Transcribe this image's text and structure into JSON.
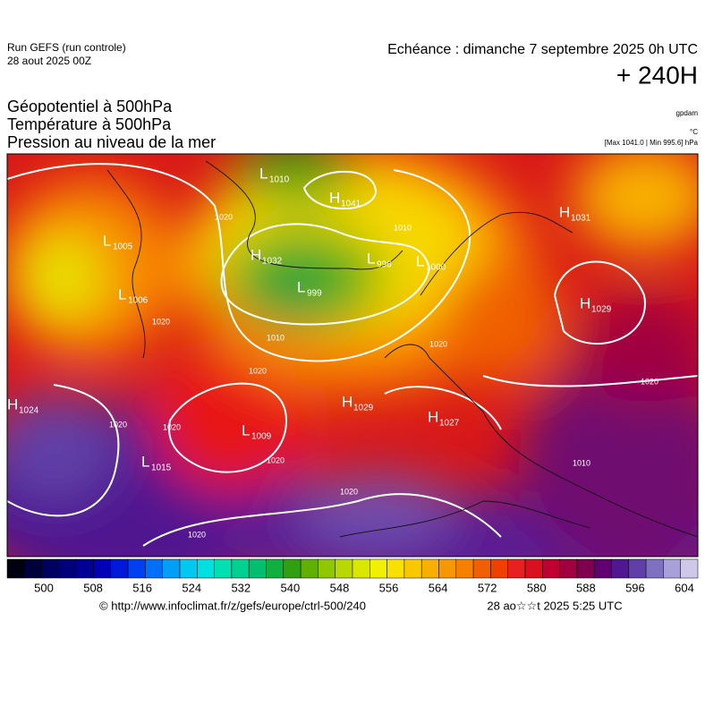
{
  "header": {
    "run": "Run GEFS (run controle)",
    "date": "28 aout 2025 00Z",
    "echeance": "Echéance : dimanche 7 septembre 2025 0h UTC",
    "lead": "+ 240H",
    "fields": [
      "Géopotentiel à 500hPa",
      "Température à 500hPa",
      "Pression au niveau de la mer"
    ],
    "units": [
      "gpdam",
      "°C",
      "[Max 1041.0 | Min 995.6] hPa"
    ]
  },
  "map": {
    "pressure_centers": [
      {
        "kind": "H",
        "value": 1024
      },
      {
        "kind": "L",
        "value": 1015
      },
      {
        "kind": "L",
        "value": 1009
      },
      {
        "kind": "H",
        "value": 1029
      },
      {
        "kind": "H",
        "value": 1027
      },
      {
        "kind": "L",
        "value": 1006
      },
      {
        "kind": "L",
        "value": 1005
      },
      {
        "kind": "L",
        "value": 1010
      },
      {
        "kind": "H",
        "value": 1041
      },
      {
        "kind": "H",
        "value": 1032
      },
      {
        "kind": "L",
        "value": 999
      },
      {
        "kind": "L",
        "value": 996
      },
      {
        "kind": "L",
        "value": 1000
      },
      {
        "kind": "H",
        "value": 1029
      },
      {
        "kind": "H",
        "value": 1031
      }
    ],
    "isobar_labels": [
      1020,
      1020,
      1020,
      1020,
      1020,
      1010,
      1020,
      1010,
      1020,
      1020,
      1020,
      1010,
      1020
    ]
  },
  "colorbar": {
    "ticks": [
      500,
      508,
      516,
      524,
      532,
      540,
      548,
      556,
      564,
      572,
      580,
      588,
      596,
      604
    ],
    "colors": [
      "#000010",
      "#00003a",
      "#000060",
      "#00007a",
      "#000094",
      "#0000b4",
      "#0018d8",
      "#0040f0",
      "#0070f8",
      "#00a0f8",
      "#00c8f0",
      "#00e0e0",
      "#00e0b0",
      "#00d090",
      "#00c070",
      "#10b040",
      "#30a010",
      "#60b000",
      "#90c800",
      "#b8d800",
      "#d8e800",
      "#f0f000",
      "#f8e000",
      "#f8c800",
      "#f8b000",
      "#f89800",
      "#f88000",
      "#f06000",
      "#f04000",
      "#e82020",
      "#d81020",
      "#c00030",
      "#a00040",
      "#800050",
      "#600070",
      "#501890",
      "#6040a8",
      "#8070c0",
      "#a8a0d8",
      "#d0c8e8"
    ]
  },
  "footer": {
    "url": "© http://www.infoclimat.fr/z/gefs/europe/ctrl-500/240",
    "generated": "28 ao☆☆t 2025  5:25 UTC"
  }
}
